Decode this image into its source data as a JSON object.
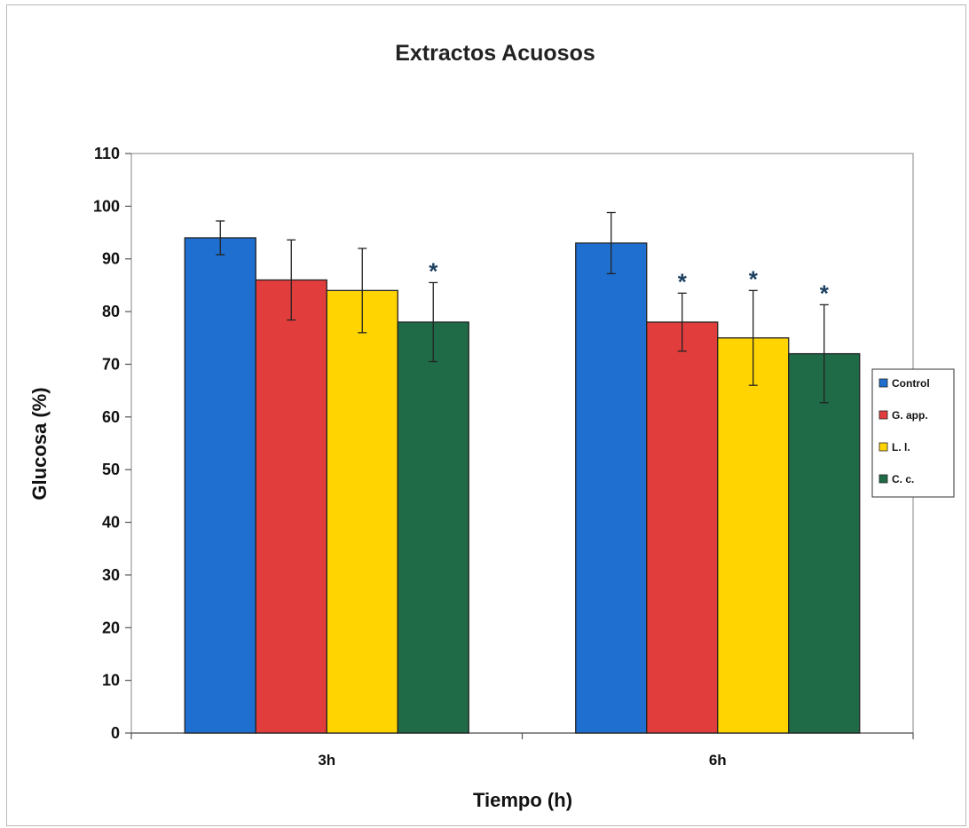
{
  "chart_data": {
    "type": "bar",
    "title": "Extractos Acuosos",
    "xlabel": "Tiempo (h)",
    "ylabel": "Glucosa (%)",
    "ylim": [
      0,
      110
    ],
    "yticks": [
      0,
      10,
      20,
      30,
      40,
      50,
      60,
      70,
      80,
      90,
      100,
      110
    ],
    "categories": [
      "3h",
      "6h"
    ],
    "series": [
      {
        "name": "Control",
        "color": "#1f6fd1",
        "values": [
          94,
          93
        ],
        "errors": [
          3.2,
          5.8
        ],
        "significant": [
          false,
          false
        ]
      },
      {
        "name": "G. app.",
        "color": "#e23d3d",
        "values": [
          86,
          78
        ],
        "errors": [
          7.6,
          5.5
        ],
        "significant": [
          false,
          true
        ]
      },
      {
        "name": "L. l.",
        "color": "#ffd400",
        "values": [
          84,
          75
        ],
        "errors": [
          8.0,
          9.0
        ],
        "significant": [
          false,
          true
        ]
      },
      {
        "name": "C. c.",
        "color": "#1f6b47",
        "values": [
          78,
          72
        ],
        "errors": [
          7.5,
          9.3
        ],
        "significant": [
          true,
          true
        ]
      }
    ],
    "significance_marker": "*",
    "legend_position": "right",
    "grid": false
  }
}
